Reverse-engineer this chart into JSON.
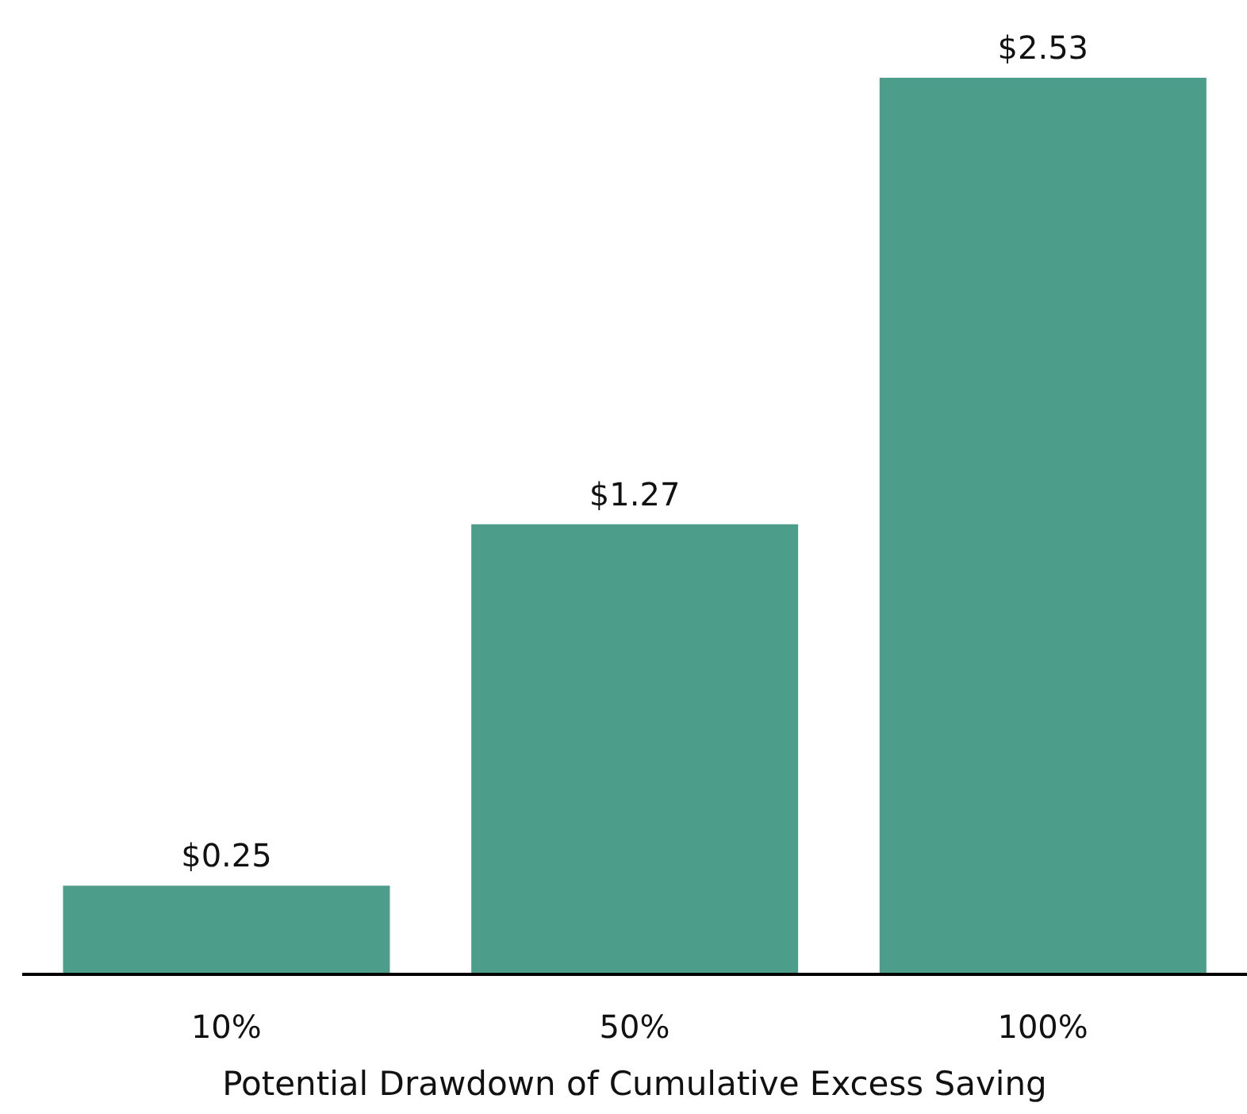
{
  "chart_data": {
    "type": "bar",
    "xlabel": "Potential Drawdown of Cumulative Excess Saving",
    "categories": [
      "10%",
      "50%",
      "100%"
    ],
    "values": [
      0.25,
      1.27,
      2.53
    ],
    "color": "#4c9e8a",
    "value_labels": [
      "$0.25",
      "$1.27",
      "$2.53"
    ],
    "ylim": [
      0,
      2.53
    ],
    "tick_labels": "x",
    "grid": false,
    "legend": false
  }
}
